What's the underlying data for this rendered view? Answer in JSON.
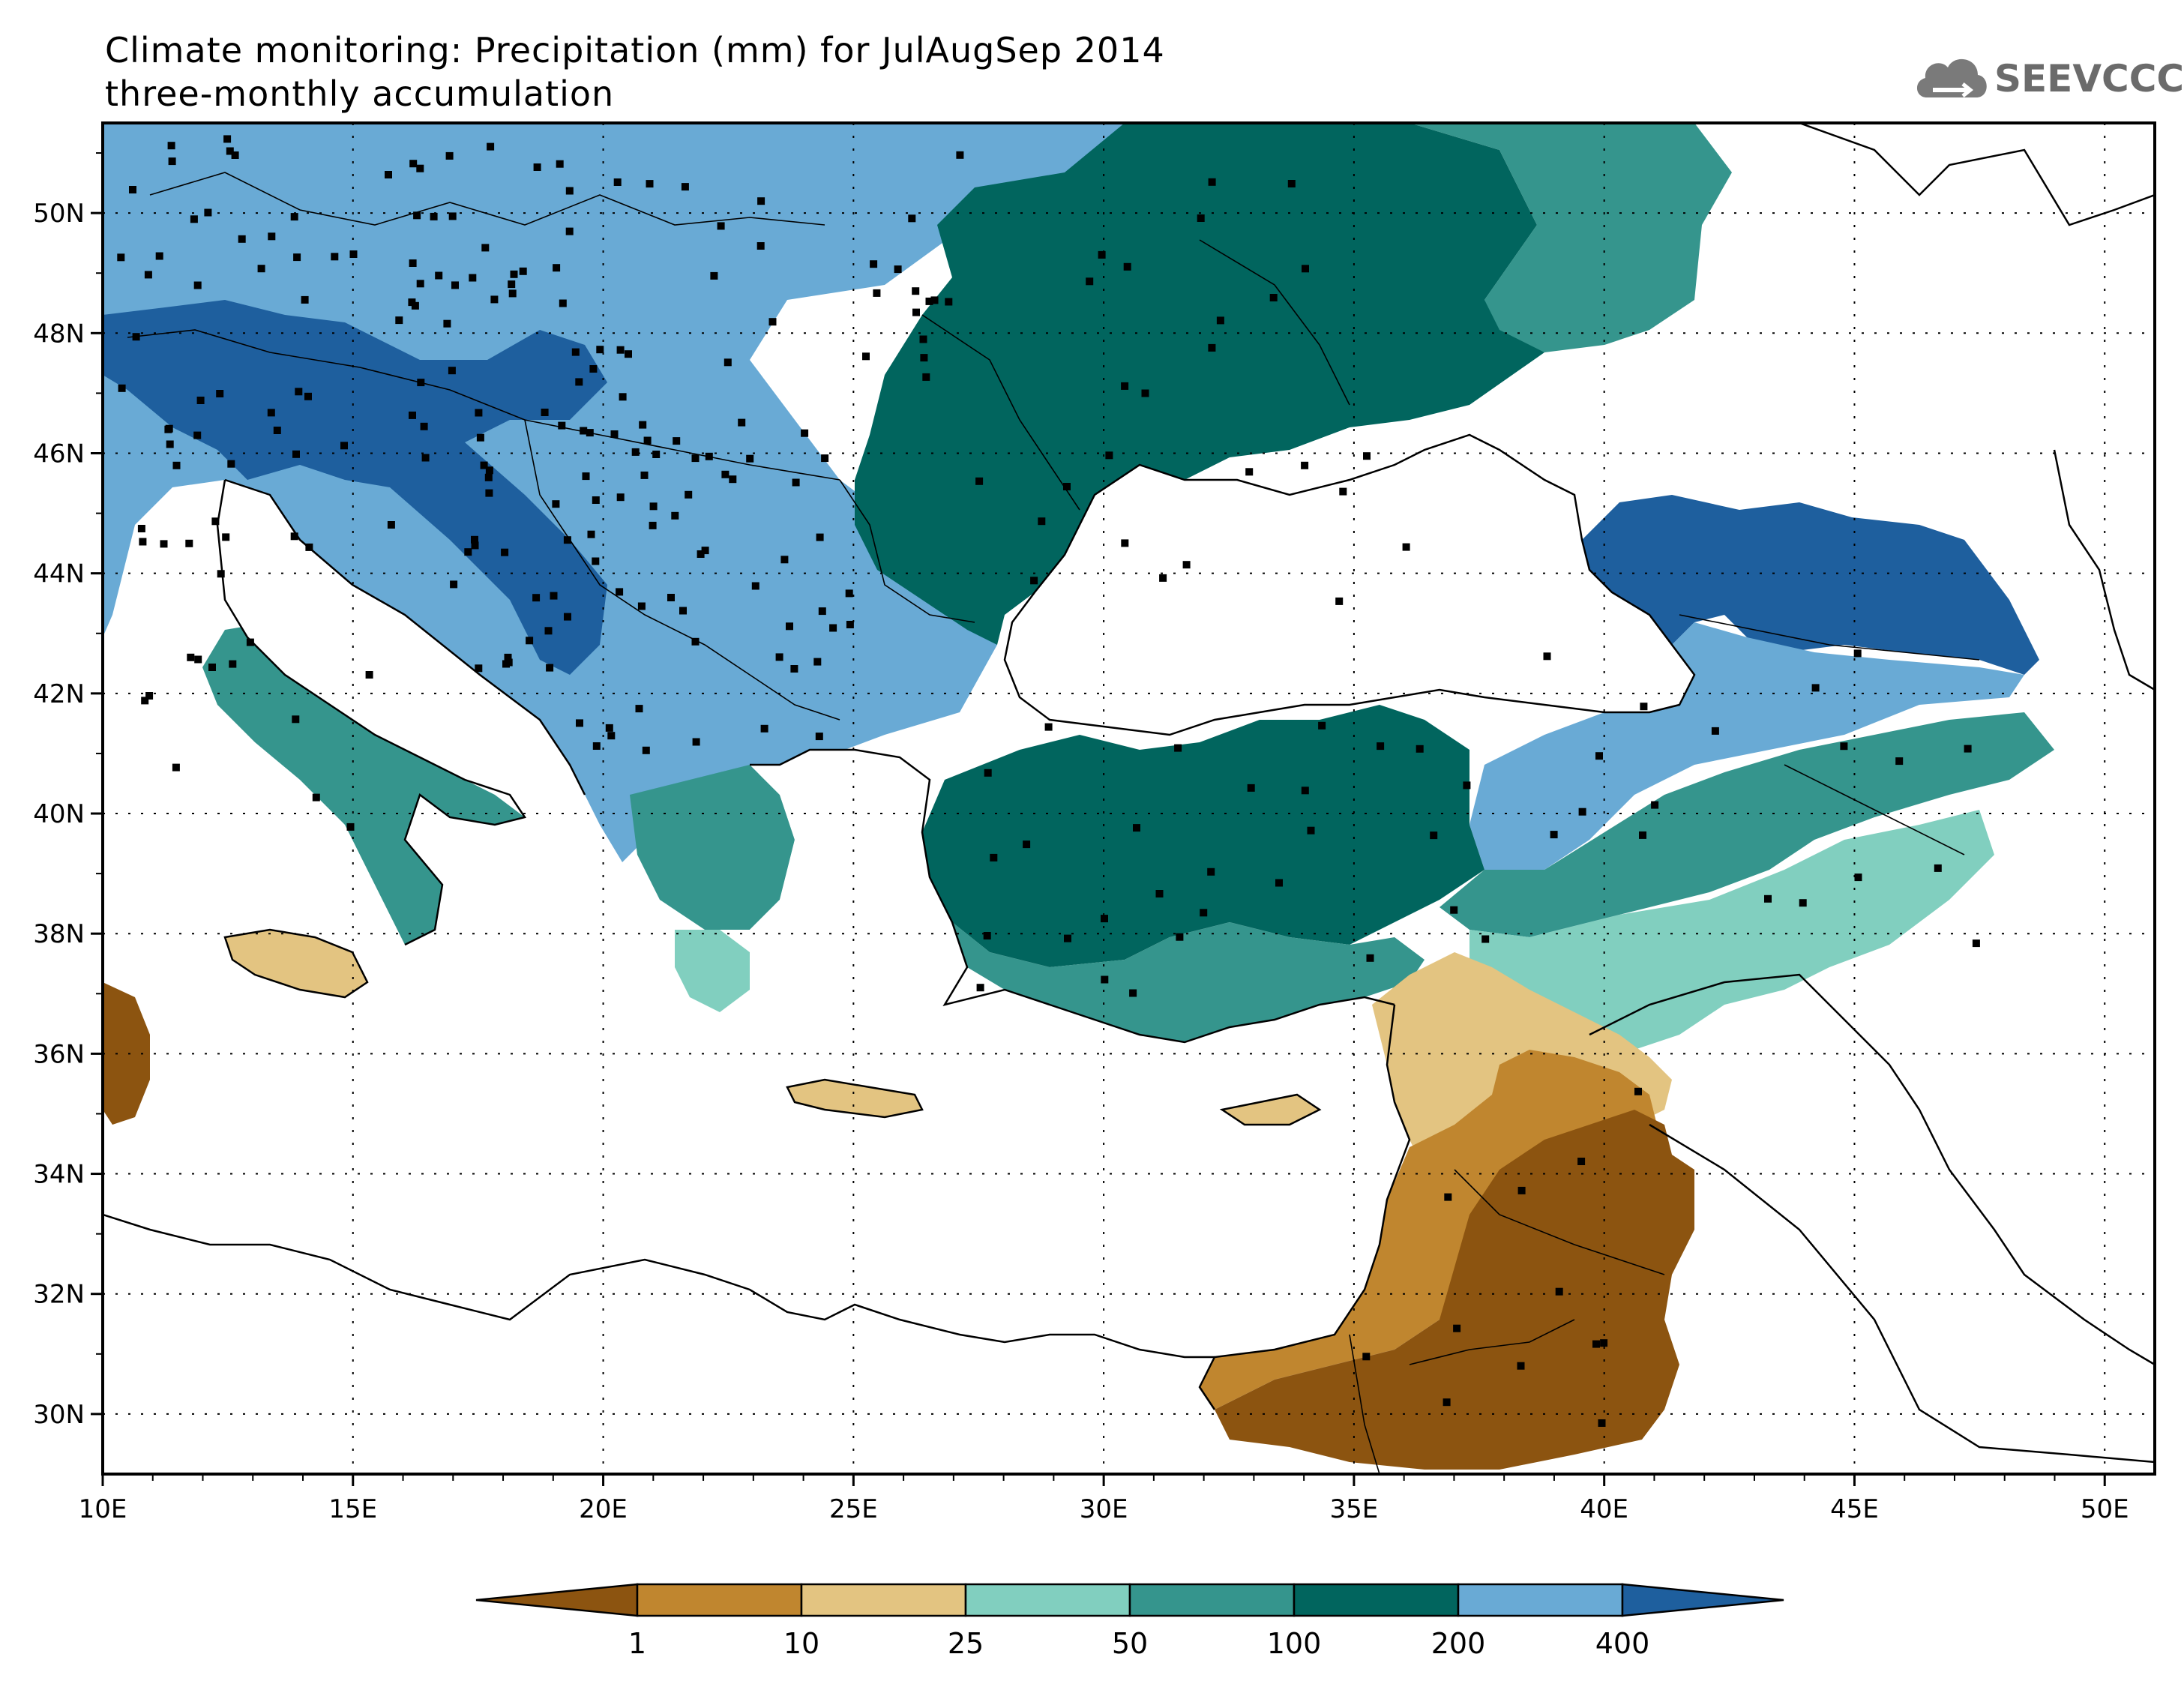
{
  "title": {
    "line1": "Climate monitoring: Precipitation (mm) for JulAugSep 2014",
    "line2": "three-monthly accumulation"
  },
  "logo": {
    "text": "SEEVCCC",
    "icon": "cloud-icon"
  },
  "map": {
    "lon_range": [
      10,
      51
    ],
    "lat_range": [
      29,
      51.5
    ],
    "lon_ticks": [
      "10E",
      "15E",
      "20E",
      "25E",
      "30E",
      "35E",
      "40E",
      "45E",
      "50E"
    ],
    "lat_ticks": [
      "30N",
      "32N",
      "34N",
      "36N",
      "38N",
      "40N",
      "42N",
      "44N",
      "46N",
      "48N",
      "50N"
    ],
    "grid": true
  },
  "legend": {
    "labels": [
      "1",
      "10",
      "25",
      "50",
      "100",
      "200",
      "400"
    ],
    "colors": [
      "#8c5410",
      "#c0862f",
      "#e3c481",
      "#81cfbf",
      "#35958d",
      "#01655e",
      "#69aad5",
      "#1e5f9e"
    ]
  }
}
